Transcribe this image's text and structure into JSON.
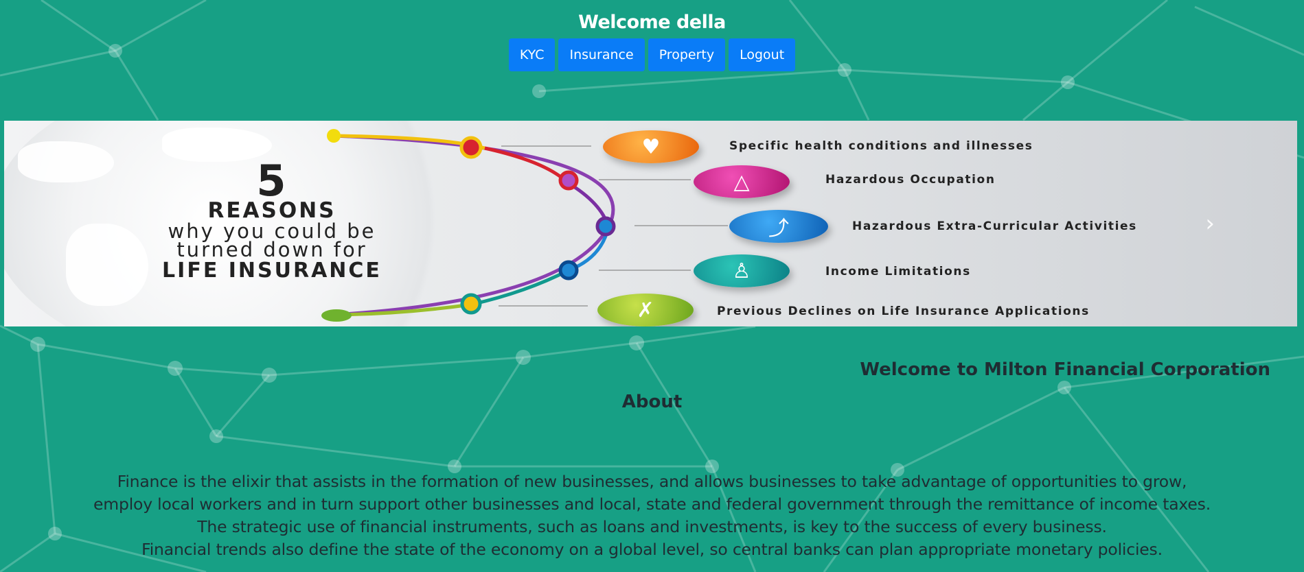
{
  "header": {
    "welcome": "Welcome della",
    "nav": [
      {
        "label": "KYC"
      },
      {
        "label": "Insurance"
      },
      {
        "label": "Property"
      },
      {
        "label": "Logout"
      }
    ]
  },
  "banner": {
    "number": "5",
    "heading": "REASONS",
    "line1": "why you could be",
    "line2": "turned down for",
    "emphasis": "LIFE INSURANCE",
    "reasons": [
      "Specific health conditions and illnesses",
      "Hazardous Occupation",
      "Hazardous Extra-Curricular Activities",
      "Income Limitations",
      "Previous Declines on Life Insurance Applications"
    ],
    "next_control": "›"
  },
  "main": {
    "corp_title": "Welcome to Milton Financial Corporation",
    "about_title": "About",
    "about_lines": [
      "Finance is the elixir that assists in the formation of new businesses, and allows businesses to take advantage of opportunities to grow,",
      "employ local workers and in turn support other businesses and local, state and federal government through the remittance of income taxes.",
      "The strategic use of financial instruments, such as loans and investments, is key to the success of every business.",
      "Financial trends also define the state of the economy on a global level, so central banks can plan appropriate monetary policies."
    ]
  },
  "colors": {
    "background": "#17a085",
    "button": "#0a7cf7",
    "text": "#1f2d33"
  }
}
